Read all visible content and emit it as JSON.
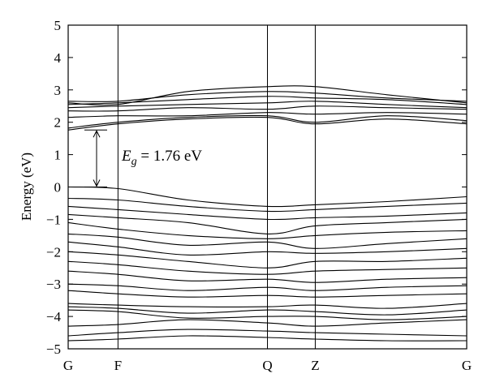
{
  "chart_data": {
    "type": "line",
    "title": "",
    "xlabel": "",
    "ylabel": "Energy (eV)",
    "ylim": [
      -5,
      5
    ],
    "y_ticks": [
      "5",
      "4",
      "3",
      "2",
      "1",
      "0",
      "−1",
      "−2",
      "−3",
      "−4",
      "−5"
    ],
    "k_points": [
      {
        "label": "G",
        "k": 0.0
      },
      {
        "label": "F",
        "k": 0.125
      },
      {
        "label": "Q",
        "k": 0.5
      },
      {
        "label": "Z",
        "k": 0.62
      },
      {
        "label": "G",
        "k": 1.0
      }
    ],
    "annotation": {
      "symbol": "E",
      "subscript": "g",
      "text": " = 1.76 eV",
      "from": 0.0,
      "to": 1.76
    },
    "conduction_bands": [
      {
        "k": [
          0,
          0.125,
          0.3,
          0.5,
          0.62,
          0.8,
          1.0
        ],
        "E": [
          1.76,
          1.95,
          2.1,
          2.15,
          1.95,
          2.1,
          1.95
        ]
      },
      {
        "k": [
          0,
          0.125,
          0.3,
          0.5,
          0.62,
          0.8,
          1.0
        ],
        "E": [
          1.82,
          2.0,
          2.15,
          2.2,
          2.0,
          2.2,
          2.05
        ]
      },
      {
        "k": [
          0,
          0.125,
          0.3,
          0.5,
          0.62,
          0.8,
          1.0
        ],
        "E": [
          2.15,
          2.2,
          2.2,
          2.3,
          2.25,
          2.3,
          2.25
        ]
      },
      {
        "k": [
          0,
          0.125,
          0.3,
          0.5,
          0.62,
          0.8,
          1.0
        ],
        "E": [
          2.35,
          2.35,
          2.45,
          2.4,
          2.5,
          2.45,
          2.4
        ]
      },
      {
        "k": [
          0,
          0.125,
          0.3,
          0.5,
          0.62,
          0.8,
          1.0
        ],
        "E": [
          2.45,
          2.5,
          2.55,
          2.6,
          2.65,
          2.55,
          2.45
        ]
      },
      {
        "k": [
          0,
          0.125,
          0.3,
          0.5,
          0.62,
          0.8,
          1.0
        ],
        "E": [
          2.55,
          2.6,
          2.7,
          2.8,
          2.75,
          2.7,
          2.55
        ]
      },
      {
        "k": [
          0,
          0.125,
          0.3,
          0.5,
          0.62,
          0.8,
          1.0
        ],
        "E": [
          2.65,
          2.65,
          2.85,
          2.95,
          2.9,
          2.75,
          2.65
        ]
      },
      {
        "k": [
          0,
          0.125,
          0.3,
          0.5,
          0.62,
          0.8,
          1.0
        ],
        "E": [
          2.6,
          2.55,
          2.95,
          3.1,
          3.1,
          2.85,
          2.6
        ]
      }
    ],
    "valence_bands": [
      {
        "k": [
          0,
          0.125,
          0.3,
          0.5,
          0.62,
          0.8,
          1.0
        ],
        "E": [
          0.0,
          -0.05,
          -0.4,
          -0.6,
          -0.55,
          -0.45,
          -0.3
        ]
      },
      {
        "k": [
          0,
          0.125,
          0.3,
          0.5,
          0.62,
          0.8,
          1.0
        ],
        "E": [
          -0.35,
          -0.4,
          -0.6,
          -0.75,
          -0.7,
          -0.6,
          -0.5
        ]
      },
      {
        "k": [
          0,
          0.125,
          0.3,
          0.5,
          0.62,
          0.8,
          1.0
        ],
        "E": [
          -0.6,
          -0.7,
          -0.85,
          -1.0,
          -0.95,
          -0.9,
          -0.8
        ]
      },
      {
        "k": [
          0,
          0.125,
          0.3,
          0.5,
          0.62,
          0.8,
          1.0
        ],
        "E": [
          -0.85,
          -0.95,
          -1.1,
          -1.45,
          -1.2,
          -1.1,
          -1.0
        ]
      },
      {
        "k": [
          0,
          0.125,
          0.3,
          0.5,
          0.62,
          0.8,
          1.0
        ],
        "E": [
          -1.1,
          -1.3,
          -1.5,
          -1.6,
          -1.5,
          -1.4,
          -1.35
        ]
      },
      {
        "k": [
          0,
          0.125,
          0.3,
          0.5,
          0.62,
          0.8,
          1.0
        ],
        "E": [
          -1.45,
          -1.55,
          -1.8,
          -1.7,
          -1.9,
          -1.75,
          -1.6
        ]
      },
      {
        "k": [
          0,
          0.125,
          0.3,
          0.5,
          0.62,
          0.8,
          1.0
        ],
        "E": [
          -1.7,
          -1.85,
          -2.1,
          -2.0,
          -2.05,
          -2.0,
          -1.9
        ]
      },
      {
        "k": [
          0,
          0.125,
          0.3,
          0.5,
          0.62,
          0.8,
          1.0
        ],
        "E": [
          -2.0,
          -2.1,
          -2.3,
          -2.5,
          -2.3,
          -2.3,
          -2.2
        ]
      },
      {
        "k": [
          0,
          0.125,
          0.3,
          0.5,
          0.62,
          0.8,
          1.0
        ],
        "E": [
          -2.3,
          -2.4,
          -2.6,
          -2.7,
          -2.6,
          -2.55,
          -2.5
        ]
      },
      {
        "k": [
          0,
          0.125,
          0.3,
          0.5,
          0.62,
          0.8,
          1.0
        ],
        "E": [
          -2.6,
          -2.7,
          -2.9,
          -2.85,
          -2.95,
          -2.85,
          -2.8
        ]
      },
      {
        "k": [
          0,
          0.125,
          0.3,
          0.5,
          0.62,
          0.8,
          1.0
        ],
        "E": [
          -3.0,
          -3.05,
          -3.2,
          -3.1,
          -3.2,
          -3.1,
          -3.05
        ]
      },
      {
        "k": [
          0,
          0.125,
          0.3,
          0.5,
          0.62,
          0.8,
          1.0
        ],
        "E": [
          -3.2,
          -3.3,
          -3.4,
          -3.35,
          -3.4,
          -3.35,
          -3.3
        ]
      },
      {
        "k": [
          0,
          0.125,
          0.3,
          0.5,
          0.62,
          0.8,
          1.0
        ],
        "E": [
          -3.6,
          -3.65,
          -3.7,
          -3.7,
          -3.65,
          -3.75,
          -3.6
        ]
      },
      {
        "k": [
          0,
          0.125,
          0.3,
          0.5,
          0.62,
          0.8,
          1.0
        ],
        "E": [
          -3.7,
          -3.75,
          -3.9,
          -3.8,
          -3.85,
          -3.95,
          -3.8
        ]
      },
      {
        "k": [
          0,
          0.125,
          0.3,
          0.5,
          0.62,
          0.8,
          1.0
        ],
        "E": [
          -3.8,
          -3.85,
          -4.05,
          -4.0,
          -4.0,
          -4.1,
          -4.0
        ]
      },
      {
        "k": [
          0,
          0.125,
          0.3,
          0.5,
          0.62,
          0.8,
          1.0
        ],
        "E": [
          -4.3,
          -4.25,
          -4.1,
          -4.2,
          -4.3,
          -4.2,
          -4.1
        ]
      },
      {
        "k": [
          0,
          0.125,
          0.3,
          0.5,
          0.62,
          0.8,
          1.0
        ],
        "E": [
          -4.6,
          -4.5,
          -4.4,
          -4.45,
          -4.5,
          -4.55,
          -4.6
        ]
      },
      {
        "k": [
          0,
          0.125,
          0.3,
          0.5,
          0.62,
          0.8,
          1.0
        ],
        "E": [
          -4.75,
          -4.7,
          -4.6,
          -4.65,
          -4.7,
          -4.75,
          -4.75
        ]
      }
    ]
  }
}
